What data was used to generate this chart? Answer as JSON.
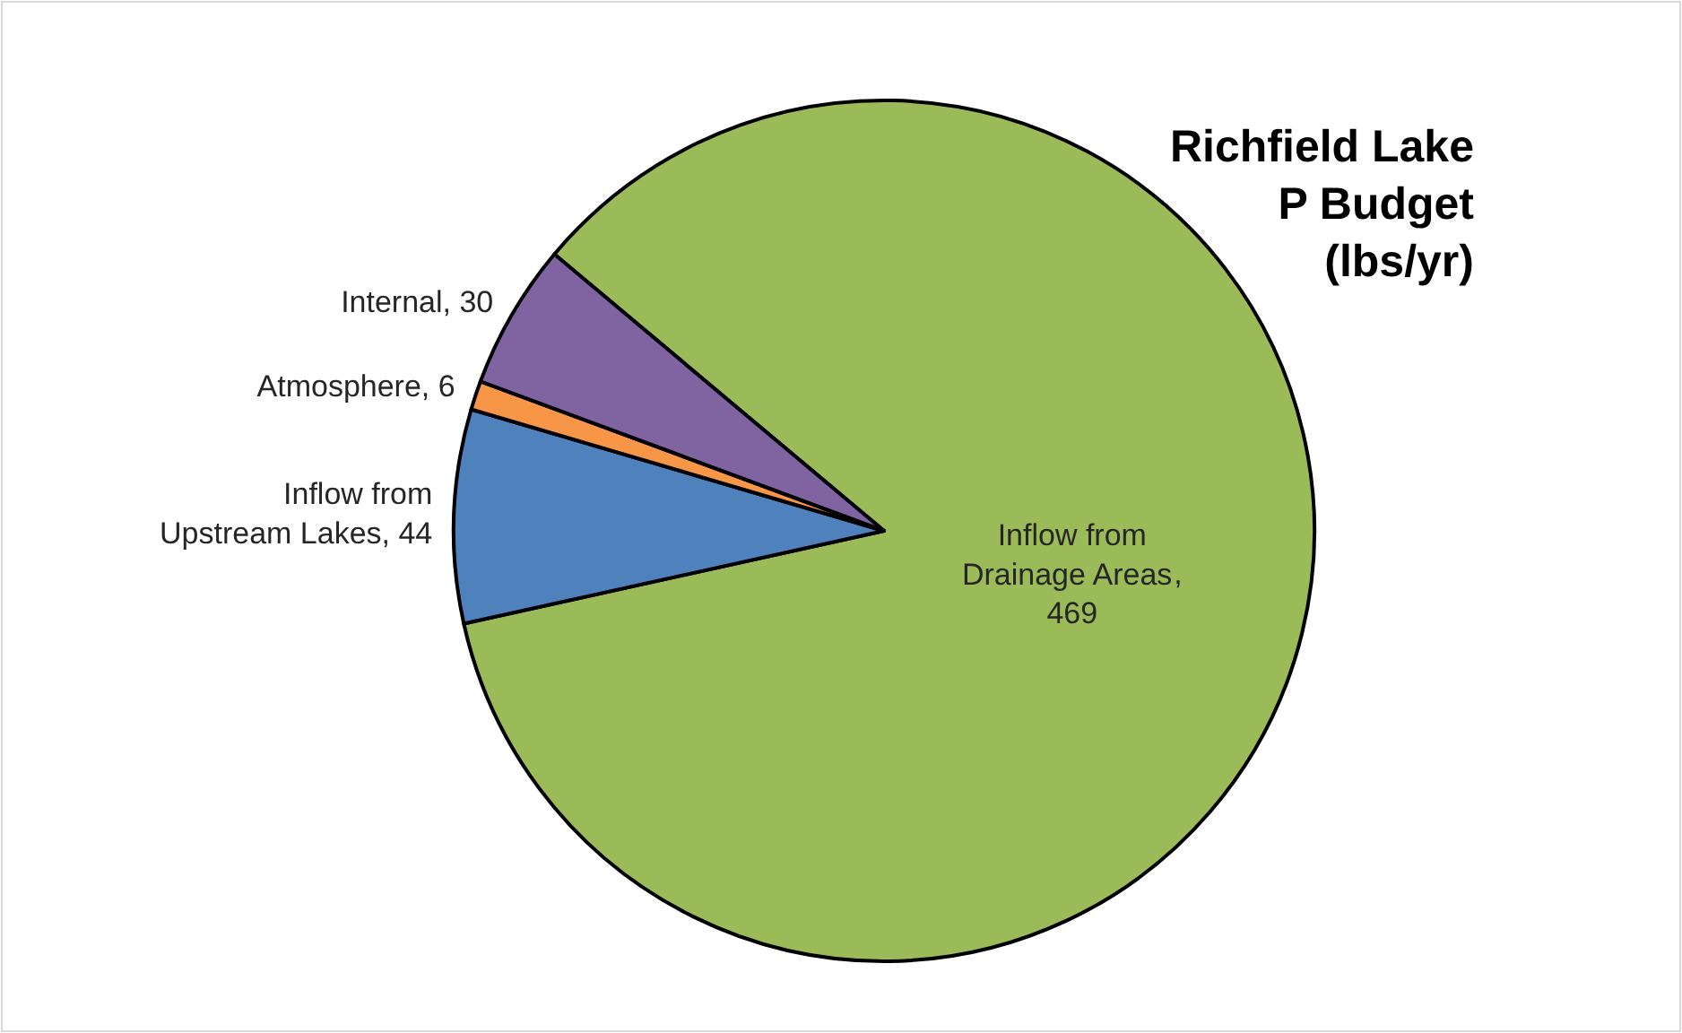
{
  "chart_data": {
    "type": "pie",
    "title": "Richfield Lake P Budget (lbs/yr)",
    "categories": [
      "Inflow from Drainage Areas",
      "Inflow from Upstream Lakes",
      "Atmosphere",
      "Internal"
    ],
    "values": [
      469,
      44,
      6,
      30
    ],
    "colors": [
      "#9bbb59",
      "#4f81bd",
      "#f79646",
      "#8064a2"
    ],
    "value_labels": [
      ", 469",
      ", 44",
      ", 6",
      ", 30"
    ],
    "legend": false
  }
}
